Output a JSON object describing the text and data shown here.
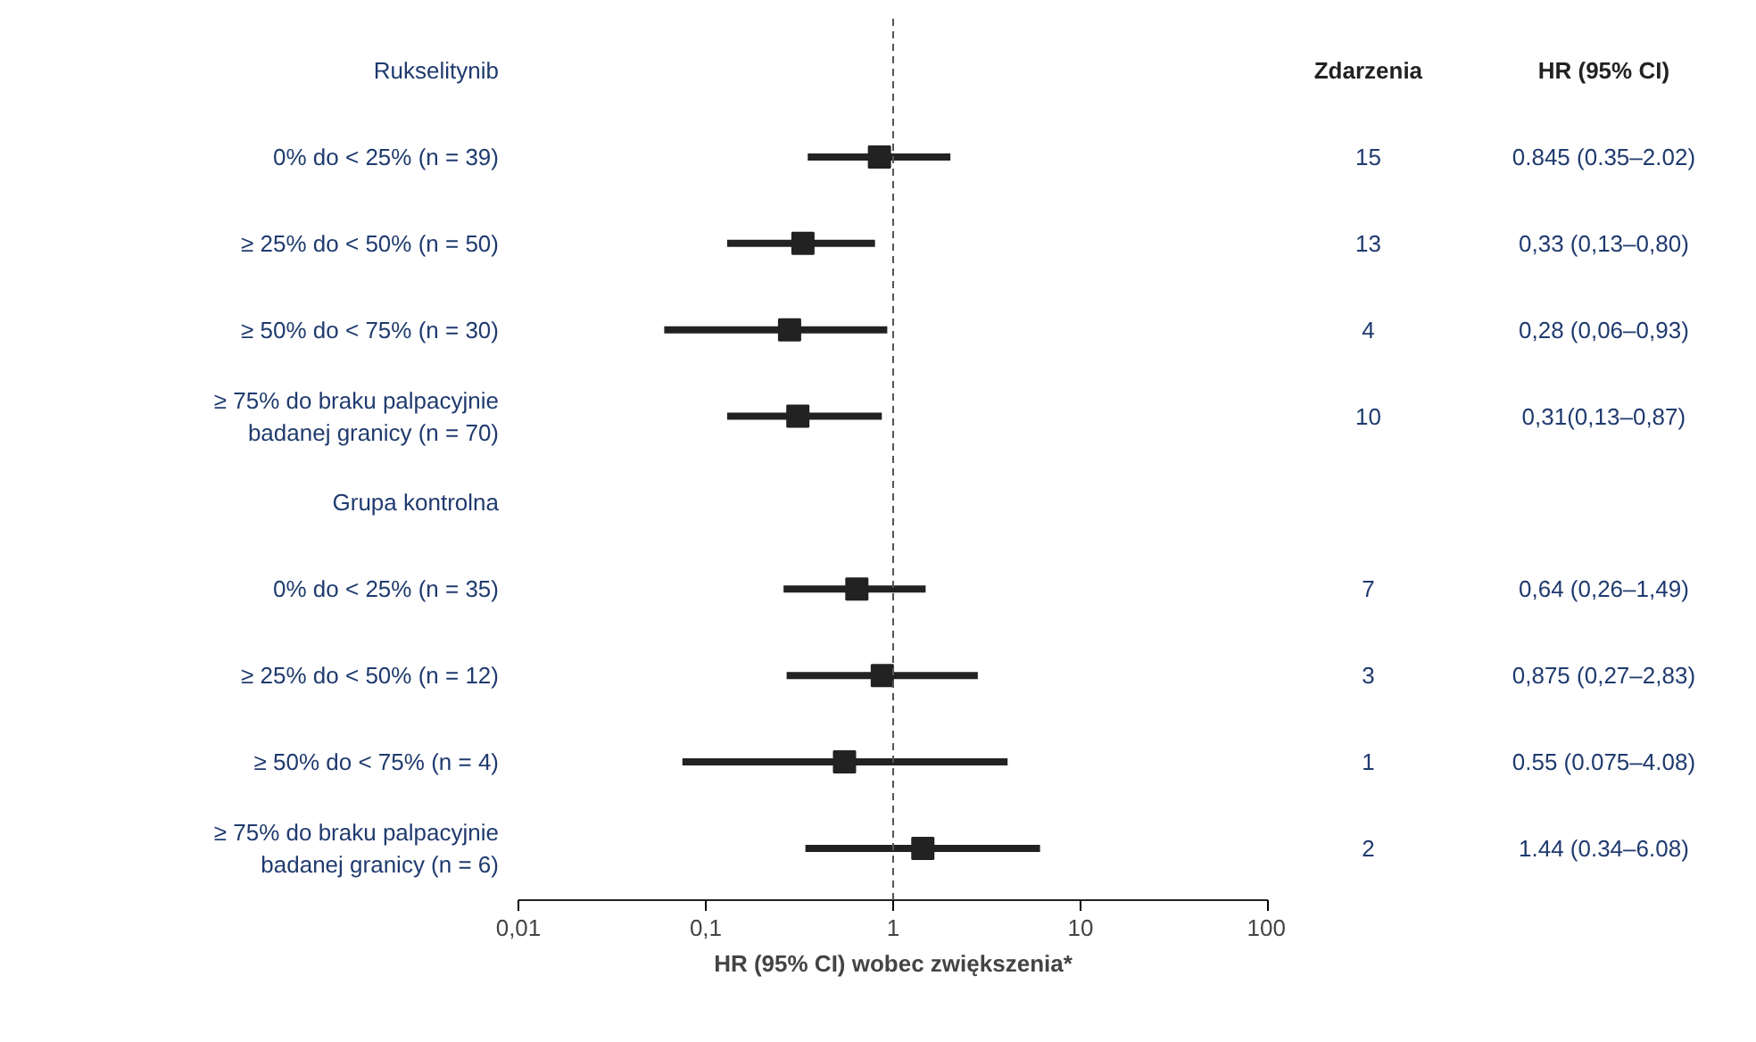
{
  "chart_data": {
    "type": "scatter",
    "orientation": "horizontal",
    "xlabel": "HR (95% CI) wobec zwiększenia*",
    "categories": [
      "Rukselitynib",
      "0% do < 25% (n = 39)",
      "≥ 25% do < 50% (n = 50)",
      "≥ 50% do < 75% (n = 30)",
      "≥ 75% do braku palpacyjnie\nbadanej granicy (n = 70)",
      "Grupa kontrolna",
      "0% do < 25% (n = 35)",
      "≥ 25% do < 50% (n = 12)",
      "≥ 50% do < 75% (n = 4)",
      "≥ 75% do braku palpacyjnie\nbadanej granicy (n = 6)"
    ],
    "values": [
      null,
      0.845,
      0.33,
      0.28,
      0.31,
      null,
      0.64,
      0.875,
      0.55,
      1.44
    ],
    "errors": [
      null,
      [
        0.35,
        2.02
      ],
      [
        0.13,
        0.8
      ],
      [
        0.06,
        0.93
      ],
      [
        0.13,
        0.87
      ],
      null,
      [
        0.26,
        1.49
      ],
      [
        0.27,
        2.83
      ],
      [
        0.075,
        4.08
      ],
      [
        0.34,
        6.08
      ]
    ],
    "value_labels": [
      null,
      "0.845 (0.35–2.02)",
      "0,33 (0,13–0,80)",
      "0,28 (0,06–0,93)",
      "0,31(0,13–0,87)",
      null,
      "0,64 (0,26–1,49)",
      "0,875 (0,27–2,83)",
      "0.55 (0.075–4.08)",
      "1.44 (0.34–6.08)"
    ],
    "color": "#222222",
    "marker": "square",
    "log": "x",
    "xlim": [
      0.01,
      100
    ],
    "xticks": [
      {
        "value": 0.01,
        "label": "0,01"
      },
      {
        "value": 0.1,
        "label": "0,1"
      },
      1,
      10,
      100
    ],
    "ref_lines": [
      {
        "axis": "x",
        "value": 1,
        "label": null,
        "line_style": "dashed",
        "color": "#555555"
      }
    ],
    "annotations": [
      "Zdarzenia",
      "HR (95% CI)",
      "15",
      "13",
      "4",
      "10",
      "7",
      "3",
      "1",
      "2"
    ],
    "grid": false
  }
}
